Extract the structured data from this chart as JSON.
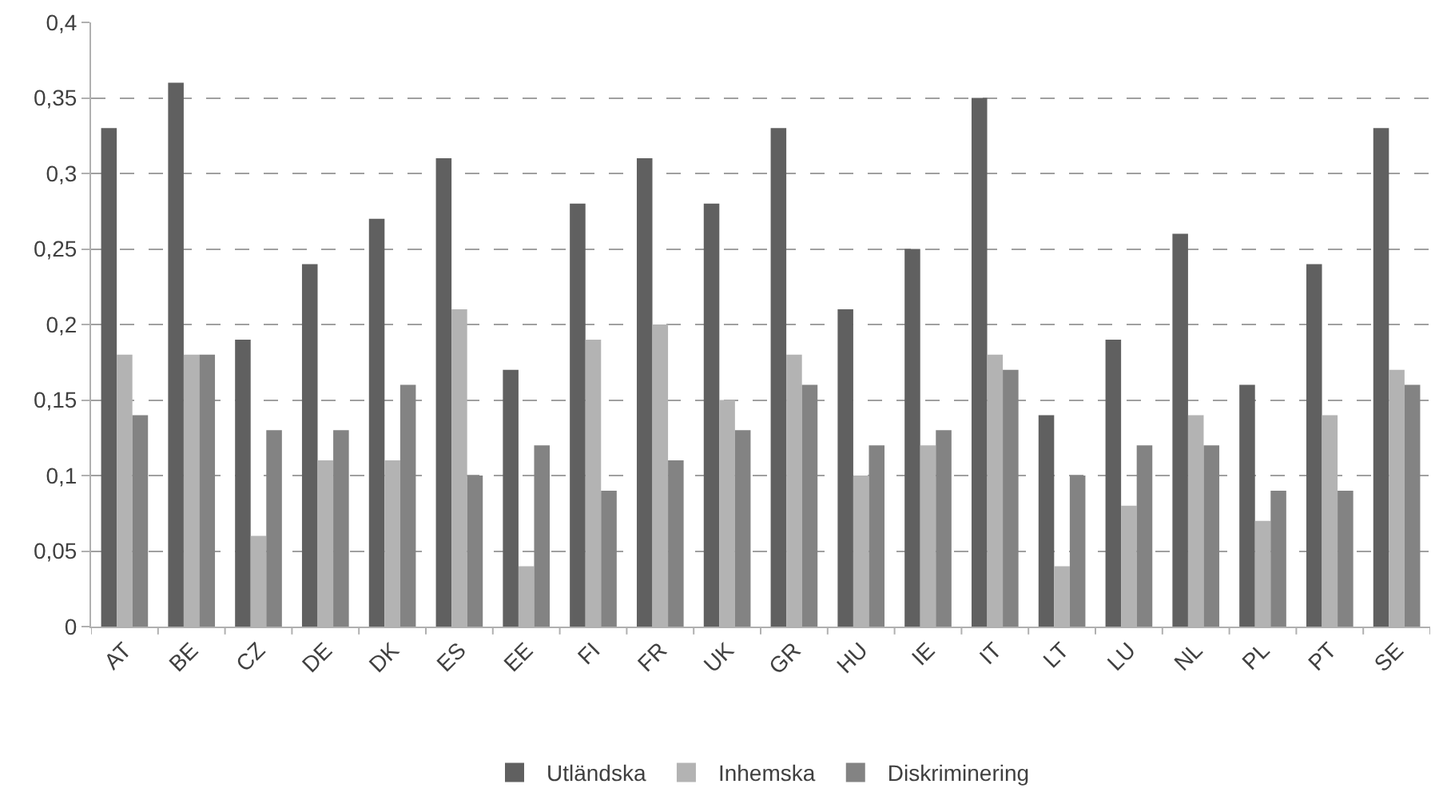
{
  "chart_data": {
    "type": "bar",
    "categories": [
      "AT",
      "BE",
      "CZ",
      "DE",
      "DK",
      "ES",
      "EE",
      "FI",
      "FR",
      "UK",
      "GR",
      "HU",
      "IE",
      "IT",
      "LT",
      "LU",
      "NL",
      "PL",
      "PT",
      "SE"
    ],
    "series": [
      {
        "name": "Utländska",
        "color": "#606060",
        "values": [
          0.33,
          0.36,
          0.19,
          0.24,
          0.27,
          0.31,
          0.17,
          0.28,
          0.31,
          0.28,
          0.33,
          0.21,
          0.25,
          0.35,
          0.14,
          0.19,
          0.26,
          0.16,
          0.24,
          0.33
        ]
      },
      {
        "name": "Inhemska",
        "color": "#b3b3b3",
        "values": [
          0.18,
          0.18,
          0.06,
          0.11,
          0.11,
          0.21,
          0.04,
          0.19,
          0.2,
          0.15,
          0.18,
          0.1,
          0.12,
          0.18,
          0.04,
          0.08,
          0.14,
          0.07,
          0.14,
          0.17
        ]
      },
      {
        "name": "Diskriminering",
        "color": "#838383",
        "values": [
          0.14,
          0.18,
          0.13,
          0.13,
          0.16,
          0.1,
          0.12,
          0.09,
          0.11,
          0.13,
          0.16,
          0.12,
          0.13,
          0.17,
          0.1,
          0.12,
          0.12,
          0.09,
          0.09,
          0.16
        ]
      }
    ],
    "ylim": [
      0,
      0.4
    ],
    "yticks": [
      0,
      {
        "value": 0.05,
        "label": "0,05"
      },
      {
        "value": 0.1,
        "label": "0,1"
      },
      {
        "value": 0.15,
        "label": "0,15"
      },
      {
        "value": 0.2,
        "label": "0,2"
      },
      {
        "value": 0.25,
        "label": "0,25"
      },
      {
        "value": 0.3,
        "label": "0,3"
      },
      {
        "value": 0.35,
        "label": "0,35"
      },
      {
        "value": 0.4,
        "label": "0,4"
      }
    ],
    "grid": "y",
    "legend": "bottom"
  }
}
